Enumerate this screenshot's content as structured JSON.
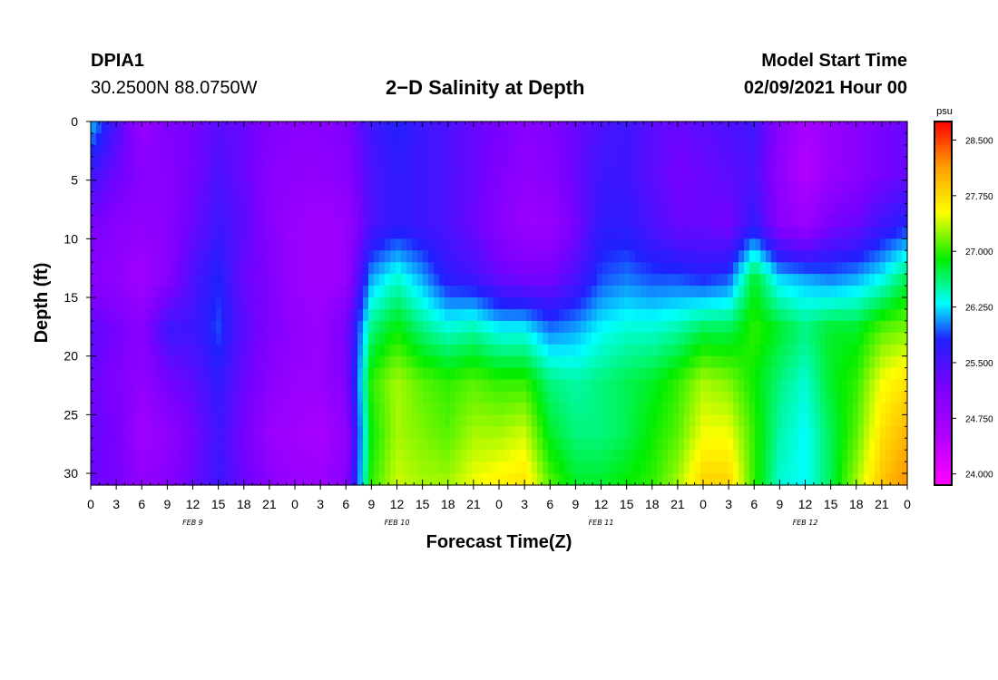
{
  "header": {
    "station_id": "DPIA1",
    "coords": "30.2500N 88.0750W",
    "title": "2−D Salinity at Depth",
    "start_label": "Model Start Time",
    "start_value": "02/09/2021 Hour 00"
  },
  "chart_data": {
    "type": "heatmap",
    "title": "2−D Salinity at Depth",
    "xlabel": "Forecast Time(Z)",
    "ylabel": "Depth (ft)",
    "x_range_hours": [
      0,
      96
    ],
    "ylim": [
      0,
      31
    ],
    "y_inverted": true,
    "x_tick_labels": [
      "0",
      "3",
      "6",
      "9",
      "12",
      "15",
      "18",
      "21",
      "0",
      "3",
      "6",
      "9",
      "12",
      "15",
      "18",
      "21",
      "0",
      "3",
      "6",
      "9",
      "12",
      "15",
      "18",
      "21",
      "0",
      "3",
      "6",
      "9",
      "12",
      "15",
      "18",
      "21",
      "0"
    ],
    "y_ticks": [
      0,
      5,
      10,
      15,
      20,
      25,
      30
    ],
    "day_labels": [
      {
        "label": "FEB 9",
        "hour": 12
      },
      {
        "label": "FEB 10",
        "hour": 36
      },
      {
        "label": "FEB 11",
        "hour": 60
      },
      {
        "label": "FEB 12",
        "hour": 84
      }
    ],
    "colorbar": {
      "unit": "psu",
      "range": [
        23.85,
        28.75
      ],
      "ticks": [
        "28.500",
        "27.750",
        "27.000",
        "26.250",
        "25.500",
        "24.750",
        "24.000"
      ]
    },
    "hours": [
      0,
      3,
      6,
      9,
      12,
      15,
      18,
      21,
      24,
      27,
      30,
      33,
      36,
      39,
      42,
      45,
      48,
      51,
      54,
      57,
      60,
      63,
      66,
      69,
      72,
      75,
      78,
      81,
      84,
      87,
      90,
      93,
      96
    ],
    "depths": [
      0,
      5,
      10,
      15,
      20,
      25,
      30
    ],
    "salinity": [
      [
        26.2,
        25.6,
        25.2,
        25.0,
        25.4,
        25.3,
        25.3,
        25.3
      ],
      [
        25.5,
        25.3,
        25.0,
        24.9,
        25.2,
        25.1,
        25.2,
        25.2
      ],
      [
        24.8,
        25.0,
        24.9,
        24.7,
        25.0,
        24.9,
        24.7,
        24.9
      ],
      [
        25.1,
        25.0,
        25.0,
        25.0,
        25.6,
        25.2,
        24.9,
        25.0
      ],
      [
        25.2,
        25.2,
        25.3,
        25.5,
        25.6,
        25.4,
        25.2,
        25.3
      ],
      [
        25.4,
        25.5,
        25.6,
        25.8,
        25.9,
        25.7,
        25.6,
        25.6
      ],
      [
        25.3,
        25.3,
        25.4,
        25.3,
        25.4,
        25.3,
        25.2,
        25.3
      ],
      [
        25.1,
        25.0,
        25.0,
        25.1,
        25.1,
        25.0,
        24.8,
        25.0
      ],
      [
        25.0,
        24.9,
        24.8,
        24.8,
        24.9,
        24.8,
        24.7,
        24.8
      ],
      [
        25.0,
        24.9,
        24.7,
        24.7,
        24.8,
        24.8,
        24.6,
        24.8
      ],
      [
        25.1,
        25.0,
        24.8,
        24.8,
        25.2,
        25.1,
        24.9,
        25.0
      ],
      [
        25.6,
        25.5,
        25.5,
        26.1,
        26.6,
        27.0,
        26.9,
        27.0
      ],
      [
        25.8,
        25.7,
        25.7,
        26.4,
        26.9,
        27.3,
        27.3,
        27.4
      ],
      [
        25.6,
        25.6,
        25.6,
        26.1,
        26.6,
        27.1,
        27.2,
        27.3
      ],
      [
        25.5,
        25.5,
        25.5,
        25.7,
        26.4,
        27.0,
        27.1,
        27.3
      ],
      [
        25.3,
        25.3,
        25.3,
        25.6,
        26.5,
        27.1,
        27.3,
        27.5
      ],
      [
        25.2,
        25.1,
        25.0,
        25.3,
        26.3,
        27.0,
        27.3,
        27.6
      ],
      [
        25.0,
        24.9,
        24.8,
        25.2,
        26.3,
        27.0,
        27.4,
        27.7
      ],
      [
        25.1,
        25.0,
        24.8,
        25.2,
        26.0,
        26.6,
        26.8,
        27.1
      ],
      [
        25.3,
        25.3,
        25.2,
        25.5,
        26.1,
        26.5,
        26.6,
        26.8
      ],
      [
        25.5,
        25.6,
        25.7,
        25.9,
        26.3,
        26.6,
        26.6,
        26.8
      ],
      [
        25.6,
        25.6,
        25.7,
        26.0,
        26.4,
        26.7,
        26.7,
        26.9
      ],
      [
        25.4,
        25.4,
        25.5,
        25.9,
        26.4,
        26.8,
        26.9,
        27.0
      ],
      [
        25.3,
        25.2,
        25.3,
        25.9,
        26.5,
        27.0,
        27.1,
        27.3
      ],
      [
        25.4,
        25.3,
        25.3,
        25.8,
        26.7,
        27.3,
        27.5,
        27.8
      ],
      [
        25.5,
        25.4,
        25.2,
        25.9,
        26.7,
        27.2,
        27.5,
        27.8
      ],
      [
        25.6,
        25.5,
        25.7,
        26.8,
        27.0,
        26.9,
        27.0,
        27.0
      ],
      [
        25.0,
        24.9,
        25.0,
        26.2,
        26.8,
        26.6,
        26.5,
        26.4
      ],
      [
        24.6,
        24.5,
        24.8,
        26.1,
        26.6,
        26.4,
        26.3,
        26.3
      ],
      [
        24.8,
        24.8,
        25.2,
        26.0,
        26.8,
        26.8,
        26.7,
        26.7
      ],
      [
        25.0,
        25.0,
        25.3,
        26.1,
        26.8,
        27.0,
        27.1,
        27.3
      ],
      [
        25.2,
        25.2,
        25.6,
        26.3,
        27.1,
        27.5,
        27.7,
        27.9
      ],
      [
        25.3,
        25.3,
        25.8,
        26.7,
        27.2,
        27.7,
        28.0,
        28.2
      ]
    ]
  }
}
